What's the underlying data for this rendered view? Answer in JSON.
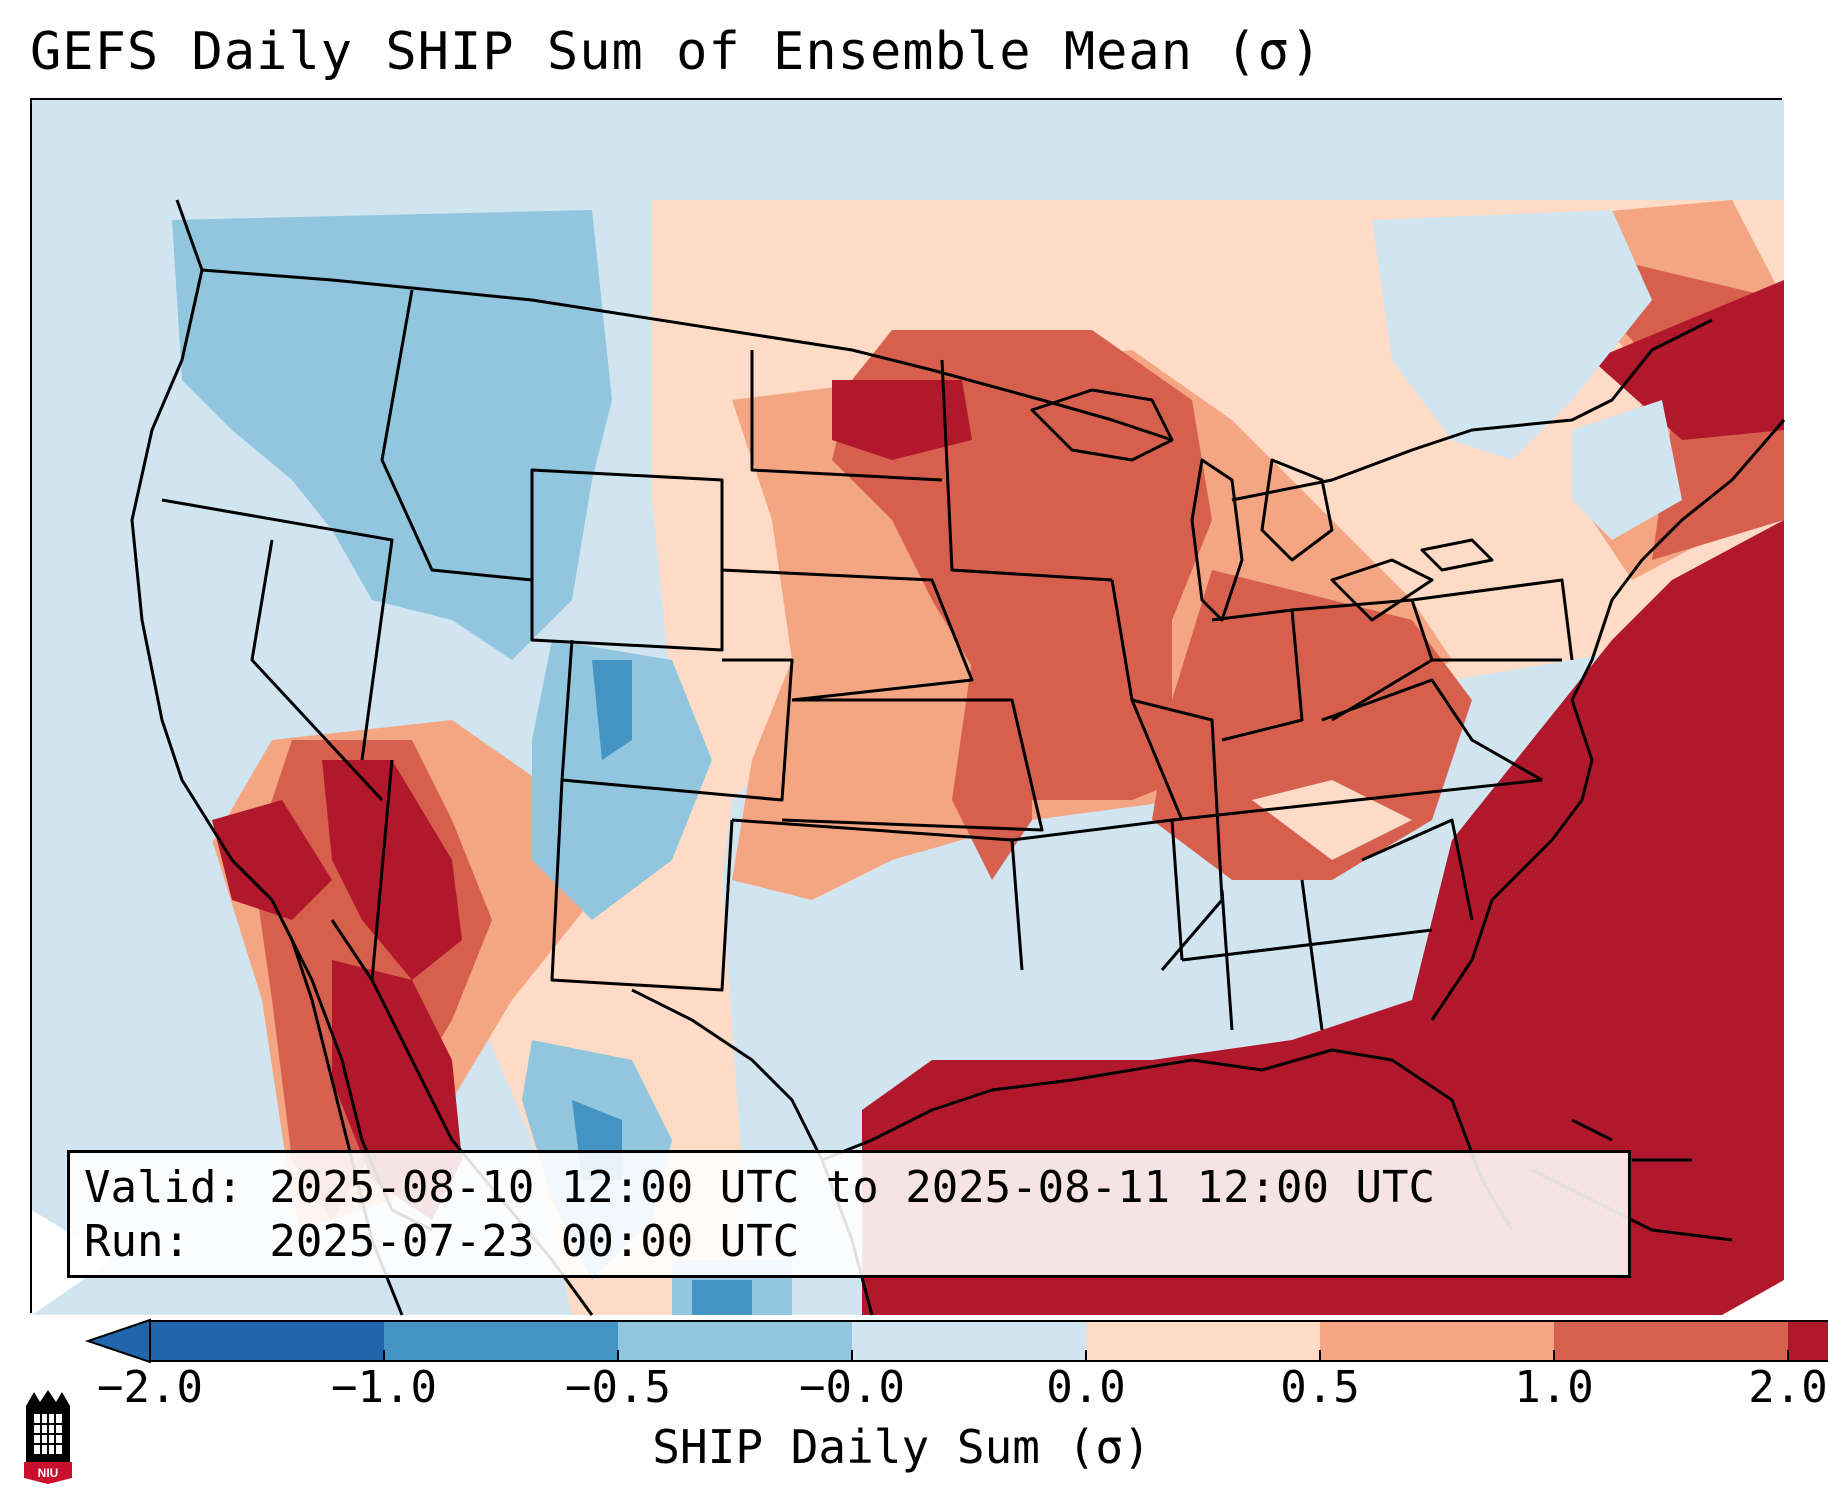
{
  "title": "GEFS Daily SHIP Sum of Ensemble Mean (σ)",
  "info": {
    "valid": "Valid: 2025-08-10 12:00 UTC to 2025-08-11 12:00 UTC",
    "run": "Run:   2025-07-23 00:00 UTC"
  },
  "colorbar": {
    "label": "SHIP Daily Sum (σ)",
    "ticks": [
      "−2.0",
      "−1.0",
      "−0.5",
      "−0.0",
      "0.0",
      "0.5",
      "1.0",
      "2.0"
    ],
    "colors": [
      "#2166ac",
      "#4393c3",
      "#92c5de",
      "#d1e5f0",
      "#fddbc7",
      "#f4a582",
      "#d6604d",
      "#b2182b"
    ],
    "extend": "both"
  },
  "map": {
    "region": "Contiguous United States",
    "pattern": "Negative anomalies over the interior West and Pacific Northwest; strong positive anomalies over the Southeast, Gulf of Mexico, western Atlantic, Desert Southwest and northern Plains/Upper Midwest"
  },
  "logo": {
    "text": "NIU",
    "colors": {
      "primary": "#c8102e",
      "secondary": "#000000"
    }
  }
}
